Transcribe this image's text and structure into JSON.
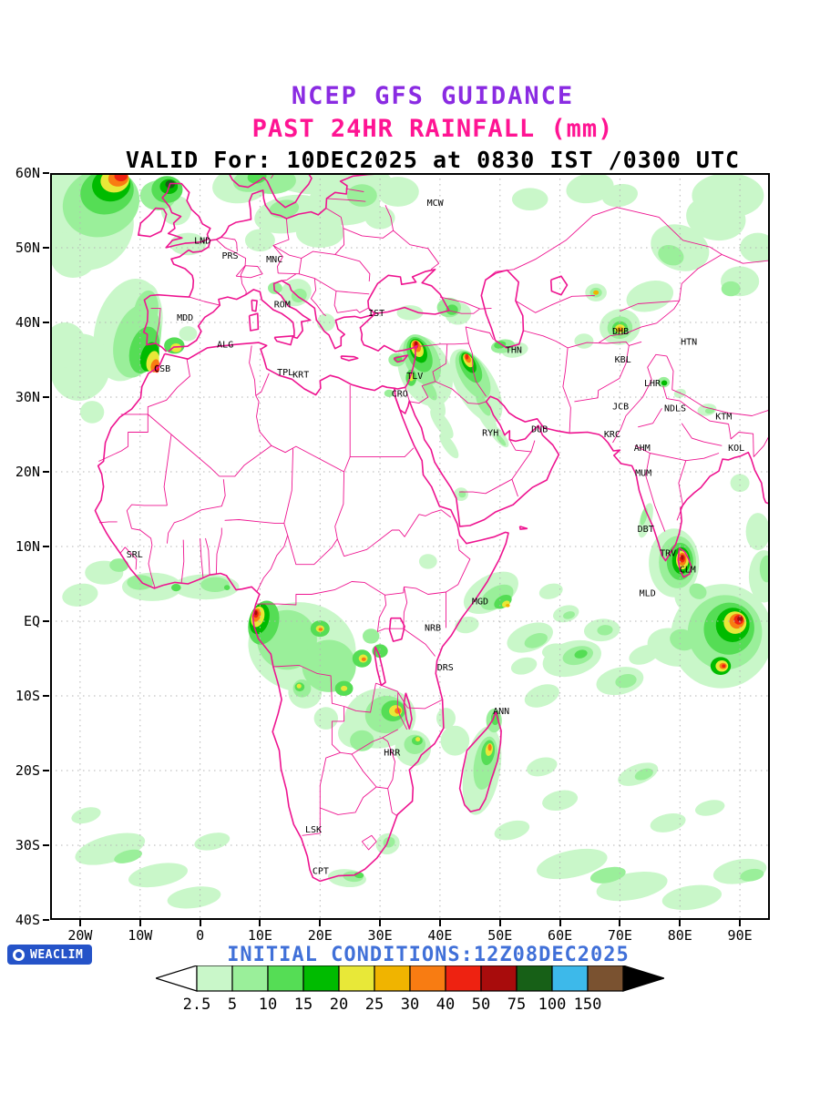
{
  "titles": {
    "line1": "NCEP GFS GUIDANCE",
    "line2": "PAST 24HR RAINFALL (mm)",
    "line3": "VALID For: 10DEC2025 at 0830 IST /0300 UTC"
  },
  "colors": {
    "title1": "#8a2be2",
    "title2": "#ff1493",
    "title3": "#000000",
    "initial": "#4070d8",
    "logo_bg": "#2553c8",
    "map_lines": "#ee1490",
    "grid": "#b4b4b4"
  },
  "footer": {
    "initial_conditions": "INITIAL CONDITIONS:12Z08DEC2025",
    "logo_text": "WEACLIM"
  },
  "map": {
    "lon_ticks": [
      {
        "label": "20W",
        "lon": -20
      },
      {
        "label": "10W",
        "lon": -10
      },
      {
        "label": "0",
        "lon": 0
      },
      {
        "label": "10E",
        "lon": 10
      },
      {
        "label": "20E",
        "lon": 20
      },
      {
        "label": "30E",
        "lon": 30
      },
      {
        "label": "40E",
        "lon": 40
      },
      {
        "label": "50E",
        "lon": 50
      },
      {
        "label": "60E",
        "lon": 60
      },
      {
        "label": "70E",
        "lon": 70
      },
      {
        "label": "80E",
        "lon": 80
      },
      {
        "label": "90E",
        "lon": 90
      }
    ],
    "lat_ticks": [
      {
        "label": "60N",
        "lat": 60
      },
      {
        "label": "50N",
        "lat": 50
      },
      {
        "label": "40N",
        "lat": 40
      },
      {
        "label": "30N",
        "lat": 30
      },
      {
        "label": "20N",
        "lat": 20
      },
      {
        "label": "10N",
        "lat": 10
      },
      {
        "label": "EQ",
        "lat": 0
      },
      {
        "label": "10S",
        "lat": -10
      },
      {
        "label": "20S",
        "lat": -20
      },
      {
        "label": "30S",
        "lat": -30
      },
      {
        "label": "40S",
        "lat": -40
      }
    ],
    "stations": [
      {
        "code": "MCW",
        "lon": 39.2,
        "lat": 56.0
      },
      {
        "code": "LND",
        "lon": 0.4,
        "lat": 50.9
      },
      {
        "code": "PRS",
        "lon": 5.0,
        "lat": 48.9
      },
      {
        "code": "MNC",
        "lon": 12.4,
        "lat": 48.4
      },
      {
        "code": "ROM",
        "lon": 13.7,
        "lat": 42.4
      },
      {
        "code": "IST",
        "lon": 29.4,
        "lat": 41.2
      },
      {
        "code": "MDD",
        "lon": -2.5,
        "lat": 40.6
      },
      {
        "code": "ALG",
        "lon": 4.2,
        "lat": 37.0
      },
      {
        "code": "CSB",
        "lon": -6.3,
        "lat": 33.8
      },
      {
        "code": "TPL",
        "lon": 14.2,
        "lat": 33.3
      },
      {
        "code": "KRT",
        "lon": 16.8,
        "lat": 33.0
      },
      {
        "code": "TLV",
        "lon": 35.8,
        "lat": 32.8
      },
      {
        "code": "CRO",
        "lon": 33.3,
        "lat": 30.4
      },
      {
        "code": "THN",
        "lon": 52.3,
        "lat": 36.3
      },
      {
        "code": "DHB",
        "lon": 70.1,
        "lat": 38.8
      },
      {
        "code": "HTN",
        "lon": 81.5,
        "lat": 37.4
      },
      {
        "code": "KBL",
        "lon": 70.5,
        "lat": 35.0
      },
      {
        "code": "LHR",
        "lon": 75.4,
        "lat": 31.8
      },
      {
        "code": "JCB",
        "lon": 70.1,
        "lat": 28.7
      },
      {
        "code": "NDLS",
        "lon": 79.2,
        "lat": 28.5
      },
      {
        "code": "KTM",
        "lon": 87.3,
        "lat": 27.4
      },
      {
        "code": "KRC",
        "lon": 68.7,
        "lat": 25.0
      },
      {
        "code": "AHM",
        "lon": 73.7,
        "lat": 23.2
      },
      {
        "code": "KOL",
        "lon": 89.4,
        "lat": 23.2
      },
      {
        "code": "MUM",
        "lon": 73.9,
        "lat": 19.8
      },
      {
        "code": "RYH",
        "lon": 48.4,
        "lat": 25.2
      },
      {
        "code": "DUB",
        "lon": 56.6,
        "lat": 25.7
      },
      {
        "code": "DBT",
        "lon": 74.3,
        "lat": 12.3
      },
      {
        "code": "TRV",
        "lon": 78.0,
        "lat": 9.1
      },
      {
        "code": "CLM",
        "lon": 81.3,
        "lat": 6.9
      },
      {
        "code": "MLD",
        "lon": 74.6,
        "lat": 3.7
      },
      {
        "code": "SRL",
        "lon": -10.9,
        "lat": 8.9
      },
      {
        "code": "MGD",
        "lon": 46.7,
        "lat": 2.6
      },
      {
        "code": "NRB",
        "lon": 38.8,
        "lat": -0.9
      },
      {
        "code": "DRS",
        "lon": 40.9,
        "lat": -6.2
      },
      {
        "code": "ANN",
        "lon": 50.2,
        "lat": -12.1
      },
      {
        "code": "HRR",
        "lon": 32.0,
        "lat": -17.6
      },
      {
        "code": "LSK",
        "lon": 18.9,
        "lat": -27.9
      },
      {
        "code": "CPT",
        "lon": 20.1,
        "lat": -33.5
      }
    ]
  },
  "legend": {
    "values": [
      "2.5",
      "5",
      "10",
      "15",
      "20",
      "25",
      "30",
      "40",
      "50",
      "75",
      "100",
      "150"
    ],
    "colors": [
      "#ffffff",
      "#c9f7c9",
      "#9aef9a",
      "#55dd55",
      "#00bb00",
      "#e8e838",
      "#f0b400",
      "#f87c12",
      "#ee2211",
      "#a80c0c",
      "#176017",
      "#3db9ea",
      "#7a5230",
      "#000000"
    ]
  }
}
